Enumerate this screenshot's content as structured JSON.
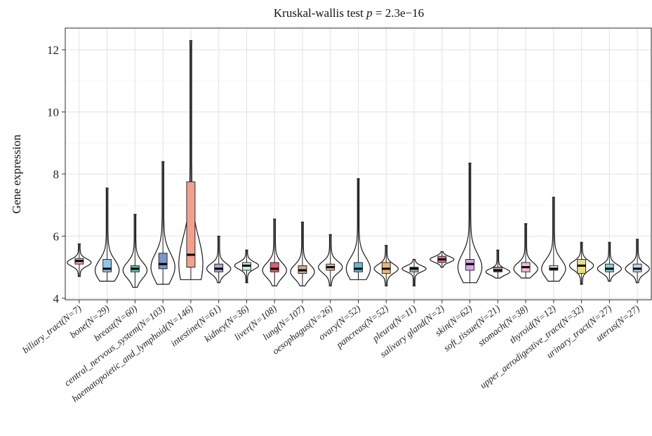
{
  "chart_data": {
    "type": "violin",
    "title_prefix": "Kruskal-wallis test ",
    "title_p": "p",
    "title_suffix": " = 2.3e−16",
    "xlabel": "",
    "ylabel": "Gene expression",
    "ylim": [
      3.95,
      12.7
    ],
    "yticks": [
      4,
      6,
      8,
      10,
      12
    ],
    "grid": true,
    "legend": "none",
    "categories": [
      {
        "label": "biliary_tract(N=7)",
        "color": "#f4a3a3",
        "min": 4.7,
        "max": 5.75,
        "q1": 5.1,
        "median": 5.2,
        "q3": 5.28,
        "mode": 5.15
      },
      {
        "label": "bone(N=29)",
        "color": "#8fc8e6",
        "min": 4.55,
        "max": 7.55,
        "q1": 4.85,
        "median": 4.95,
        "q3": 5.25,
        "mode": 4.9
      },
      {
        "label": "breast(N=60)",
        "color": "#4fc9b0",
        "min": 4.35,
        "max": 6.7,
        "q1": 4.85,
        "median": 4.95,
        "q3": 5.05,
        "mode": 4.9
      },
      {
        "label": "central_nervous_system(N=103)",
        "color": "#7b97c8",
        "min": 4.45,
        "max": 8.4,
        "q1": 4.95,
        "median": 5.1,
        "q3": 5.45,
        "mode": 5.0
      },
      {
        "label": "haematopoietic_and_lymphoid(N=146)",
        "color": "#f2a08e",
        "min": 4.6,
        "max": 12.3,
        "q1": 5.0,
        "median": 5.4,
        "q3": 7.75,
        "mode": 5.1
      },
      {
        "label": "intestine(N=61)",
        "color": "#a9a5d4",
        "min": 4.5,
        "max": 6.0,
        "q1": 4.85,
        "median": 4.95,
        "q3": 5.1,
        "mode": 4.95
      },
      {
        "label": "kidney(N=36)",
        "color": "#cdebe2",
        "min": 4.5,
        "max": 5.55,
        "q1": 4.9,
        "median": 5.05,
        "q3": 5.15,
        "mode": 5.05
      },
      {
        "label": "liver(N=108)",
        "color": "#e85b6e",
        "min": 4.4,
        "max": 6.55,
        "q1": 4.85,
        "median": 4.95,
        "q3": 5.15,
        "mode": 4.9
      },
      {
        "label": "lung(N=107)",
        "color": "#c7ac8e",
        "min": 4.4,
        "max": 6.45,
        "q1": 4.8,
        "median": 4.9,
        "q3": 5.05,
        "mode": 4.85
      },
      {
        "label": "oesophagus(N=26)",
        "color": "#d8b99c",
        "min": 4.4,
        "max": 6.05,
        "q1": 4.9,
        "median": 5.0,
        "q3": 5.1,
        "mode": 5.0
      },
      {
        "label": "ovary(N=52)",
        "color": "#5bbcd6",
        "min": 4.6,
        "max": 7.85,
        "q1": 4.85,
        "median": 4.95,
        "q3": 5.15,
        "mode": 4.95
      },
      {
        "label": "pancreas(N=52)",
        "color": "#f3b36b",
        "min": 4.4,
        "max": 5.7,
        "q1": 4.8,
        "median": 4.95,
        "q3": 5.15,
        "mode": 4.95
      },
      {
        "label": "pleura(N=11)",
        "color": "#8ed08e",
        "min": 4.4,
        "max": 5.25,
        "q1": 4.85,
        "median": 4.95,
        "q3": 5.0,
        "mode": 4.95
      },
      {
        "label": "salivary gland(N=2)",
        "color": "#e86d86",
        "min": 5.0,
        "max": 5.5,
        "q1": 5.15,
        "median": 5.25,
        "q3": 5.35,
        "mode": 5.25
      },
      {
        "label": "skin(N=62)",
        "color": "#d7a8e6",
        "min": 4.5,
        "max": 8.35,
        "q1": 4.9,
        "median": 5.1,
        "q3": 5.25,
        "mode": 5.0
      },
      {
        "label": "soft_tissue(N=21)",
        "color": "#b89d8e",
        "min": 4.65,
        "max": 5.55,
        "q1": 4.85,
        "median": 4.9,
        "q3": 5.0,
        "mode": 4.85
      },
      {
        "label": "stomach(N=38)",
        "color": "#f6b9d6",
        "min": 4.65,
        "max": 6.4,
        "q1": 4.85,
        "median": 5.0,
        "q3": 5.15,
        "mode": 4.95
      },
      {
        "label": "thyroid(N=12)",
        "color": "#e0e0e0",
        "min": 4.55,
        "max": 7.25,
        "q1": 4.9,
        "median": 4.95,
        "q3": 5.05,
        "mode": 4.95
      },
      {
        "label": "upper_aerodigestive_tract(N=32)",
        "color": "#e9e07e",
        "min": 4.45,
        "max": 5.8,
        "q1": 4.8,
        "median": 5.05,
        "q3": 5.25,
        "mode": 5.05
      },
      {
        "label": "urinary_tract(N=27)",
        "color": "#7fd3e0",
        "min": 4.55,
        "max": 5.8,
        "q1": 4.85,
        "median": 4.95,
        "q3": 5.1,
        "mode": 4.95
      },
      {
        "label": "uterus(N=27)",
        "color": "#b9d8ef",
        "min": 4.5,
        "max": 5.9,
        "q1": 4.85,
        "median": 4.95,
        "q3": 5.1,
        "mode": 4.95
      }
    ]
  }
}
